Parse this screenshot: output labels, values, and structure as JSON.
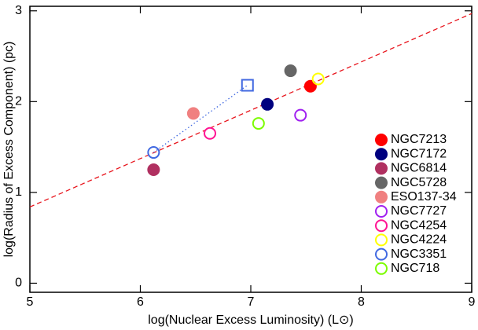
{
  "chart_data": {
    "type": "scatter",
    "x_label": "log(Nuclear Excess Luminosity) (L⊙)",
    "y_label": "log(Radius of Excess Component) (pc)",
    "xlim": [
      5,
      9
    ],
    "ylim": [
      -0.1,
      3.05
    ],
    "xticks": [
      5,
      6,
      7,
      8,
      9
    ],
    "yticks": [
      0,
      1,
      2,
      3
    ],
    "legend": "lower right",
    "fit_line": {
      "x": [
        5,
        9
      ],
      "y": [
        0.84,
        2.97
      ],
      "color": "#e8141c",
      "style": "dashed"
    },
    "series": [
      {
        "name": "NGC7213",
        "color": "#ff0000",
        "filled": true,
        "x": [
          7.54
        ],
        "values": [
          2.17
        ]
      },
      {
        "name": "NGC7172",
        "color": "#00007f",
        "filled": true,
        "x": [
          7.15
        ],
        "values": [
          1.97
        ]
      },
      {
        "name": "NGC6814",
        "color": "#b03060",
        "filled": true,
        "x": [
          6.12
        ],
        "values": [
          1.25
        ]
      },
      {
        "name": "NGC5728",
        "color": "#666666",
        "filled": true,
        "x": [
          7.36
        ],
        "values": [
          2.34
        ]
      },
      {
        "name": "ESO137-34",
        "color": "#f08080",
        "filled": true,
        "x": [
          6.48
        ],
        "values": [
          1.87
        ]
      },
      {
        "name": "NGC7727",
        "color": "#a020f0",
        "filled": false,
        "x": [
          7.45
        ],
        "values": [
          1.85
        ]
      },
      {
        "name": "NGC4254",
        "color": "#ff1493",
        "filled": false,
        "x": [
          6.63
        ],
        "values": [
          1.65
        ]
      },
      {
        "name": "NGC4224",
        "color": "#ffff00",
        "filled": false,
        "x": [
          7.61
        ],
        "values": [
          2.25
        ]
      },
      {
        "name": "NGC3351",
        "color": "#4169e1",
        "filled": false,
        "x": [
          6.12,
          6.97
        ],
        "values": [
          1.44,
          2.18
        ],
        "markers": [
          "circle",
          "square"
        ],
        "line": "dotted"
      },
      {
        "name": "NGC718",
        "color": "#7cfc00",
        "filled": false,
        "x": [
          7.07
        ],
        "values": [
          1.76
        ]
      }
    ]
  }
}
